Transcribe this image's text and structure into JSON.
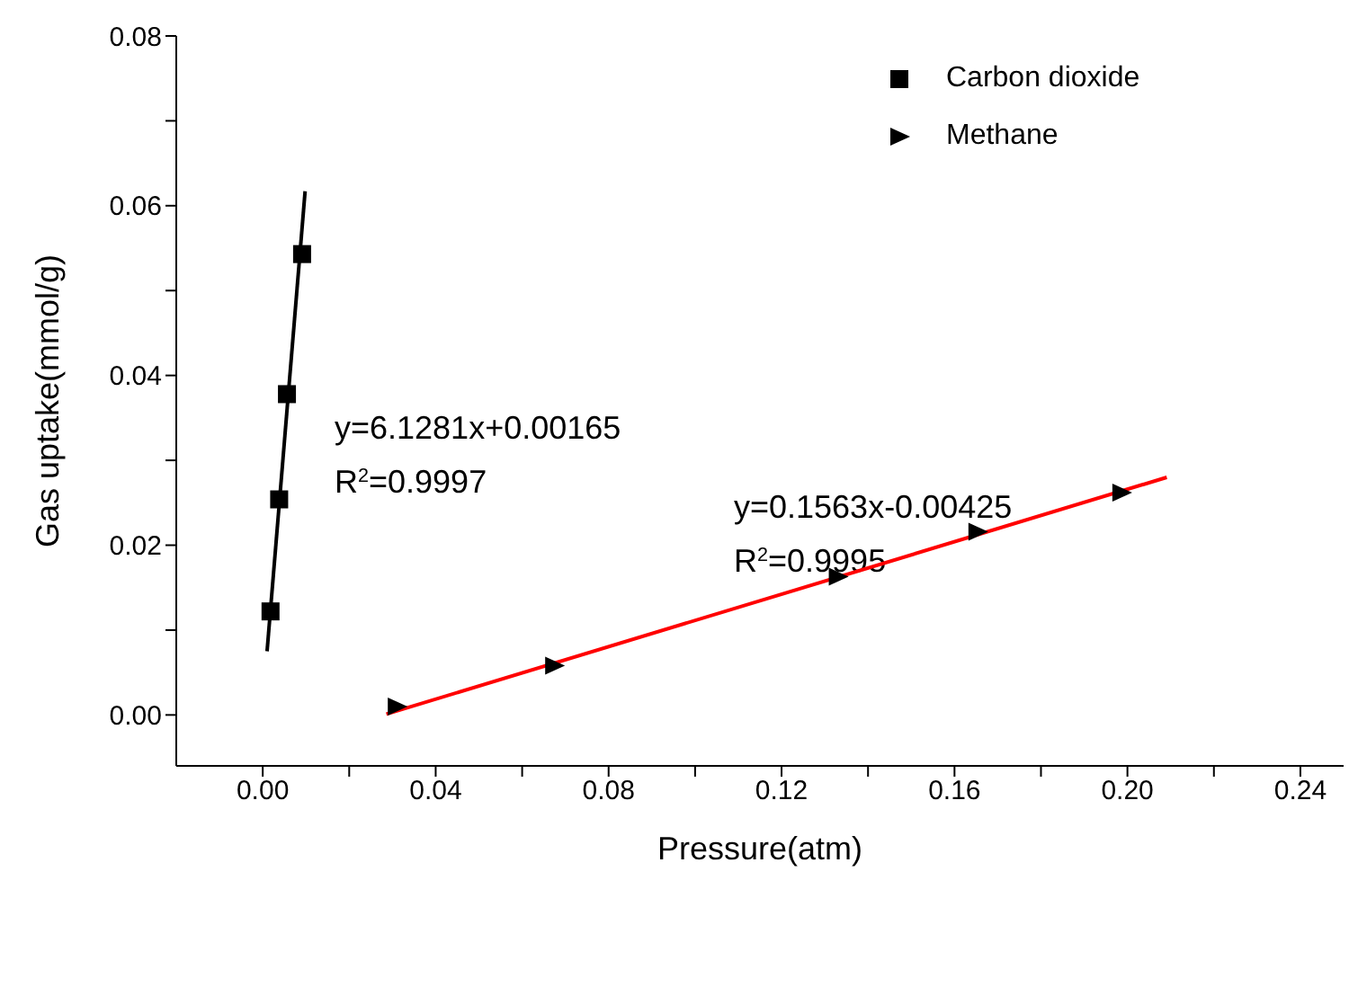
{
  "chart_data": {
    "type": "scatter",
    "xlabel": "Pressure(atm)",
    "ylabel": "Gas uptake(mmol/g)",
    "xlim": [
      -0.02,
      0.25
    ],
    "ylim": [
      -0.006,
      0.08
    ],
    "xticks": [
      {
        "value": 0,
        "label": "0.00"
      },
      {
        "value": 0.02,
        "label": null
      },
      {
        "value": 0.04,
        "label": "0.04"
      },
      {
        "value": 0.06,
        "label": null
      },
      {
        "value": 0.08,
        "label": "0.08"
      },
      {
        "value": 0.1,
        "label": null
      },
      {
        "value": 0.12,
        "label": "0.12"
      },
      {
        "value": 0.14,
        "label": null
      },
      {
        "value": 0.16,
        "label": "0.16"
      },
      {
        "value": 0.18,
        "label": null
      },
      {
        "value": 0.2,
        "label": "0.20"
      },
      {
        "value": 0.22,
        "label": null
      },
      {
        "value": 0.24,
        "label": "0.24"
      }
    ],
    "yticks": [
      {
        "value": 0,
        "label": "0.00"
      },
      {
        "value": 0.01,
        "label": null
      },
      {
        "value": 0.02,
        "label": "0.02"
      },
      {
        "value": 0.03,
        "label": null
      },
      {
        "value": 0.04,
        "label": "0.04"
      },
      {
        "value": 0.05,
        "label": null
      },
      {
        "value": 0.06,
        "label": "0.06"
      },
      {
        "value": 0.07,
        "label": null
      },
      {
        "value": 0.08,
        "label": "0.08"
      }
    ],
    "grid": false,
    "legend": "top right",
    "series": [
      {
        "name": "Carbon dioxide",
        "marker": "square",
        "color": "#000000",
        "x": [
          0.0018,
          0.0038,
          0.0056,
          0.0091
        ],
        "values": [
          0.0122,
          0.0254,
          0.0378,
          0.0543
        ]
      },
      {
        "name": "Methane",
        "marker": "triangle-right",
        "color": "#000000",
        "x": [
          0.031,
          0.0674,
          0.133,
          0.1653,
          0.1986
        ],
        "values": [
          0.001,
          0.0058,
          0.0163,
          0.0216,
          0.0262
        ]
      },
      {
        "type": "line",
        "marker": "none",
        "color": "#000000",
        "x": [
          0.001,
          0.0098
        ],
        "values": [
          0.0075,
          0.0617
        ]
      },
      {
        "type": "line",
        "marker": "none",
        "color": "#ff0000",
        "x": [
          0.0286,
          0.2091
        ],
        "values": [
          0.0001,
          0.028
        ]
      }
    ],
    "annotations": [
      "y=6.1281x+0.00165",
      "R$^{2}$=0.9997",
      "y=0.1563x-0.00425",
      "R$^{2}$=0.9995"
    ]
  }
}
